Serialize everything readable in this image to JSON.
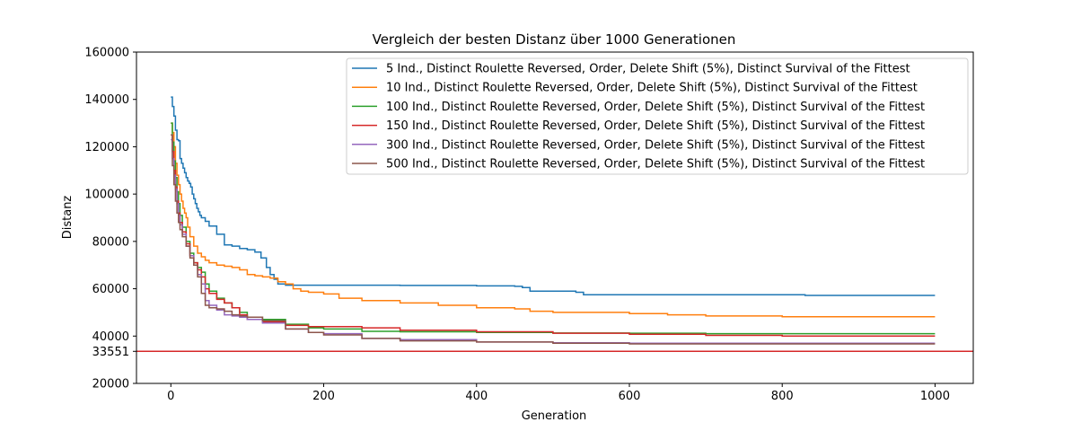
{
  "chart_data": {
    "type": "line",
    "title": "Vergleich der besten Distanz über 1000 Generationen",
    "xlabel": "Generation",
    "ylabel": "Distanz",
    "xlim": [
      -45,
      1050
    ],
    "ylim": [
      20000,
      160000
    ],
    "xticks": [
      0,
      200,
      400,
      600,
      800,
      1000
    ],
    "yticks": [
      20000,
      33551,
      40000,
      60000,
      80000,
      100000,
      120000,
      140000,
      160000
    ],
    "grid": false,
    "legend_position": "top-right",
    "reference_line": {
      "y": 33551,
      "color": "#d62728"
    },
    "series": [
      {
        "name": "5 Ind., Distinct Roulette Reversed, Order, Delete Shift (5%), Distinct Survival of the Fittest",
        "color": "#1f77b4",
        "x": [
          0,
          2,
          4,
          6,
          8,
          10,
          12,
          14,
          16,
          18,
          20,
          22,
          24,
          26,
          28,
          30,
          32,
          34,
          36,
          38,
          40,
          45,
          50,
          60,
          70,
          80,
          90,
          100,
          110,
          118,
          125,
          130,
          135,
          140,
          150,
          200,
          300,
          400,
          450,
          460,
          470,
          500,
          530,
          540,
          600,
          700,
          820,
          830,
          1000
        ],
        "y": [
          141000,
          137000,
          133000,
          127000,
          123000,
          122500,
          115000,
          113000,
          111000,
          109000,
          107000,
          105500,
          104500,
          103000,
          100000,
          98000,
          96000,
          94000,
          92500,
          91000,
          90000,
          88500,
          86500,
          83000,
          78500,
          78000,
          77000,
          76500,
          75500,
          73000,
          69000,
          66000,
          64000,
          62000,
          61500,
          61500,
          61400,
          61200,
          61000,
          60500,
          59000,
          59000,
          58500,
          57500,
          57500,
          57500,
          57500,
          57200,
          57200
        ]
      },
      {
        "name": "10 Ind., Distinct Roulette Reversed, Order, Delete Shift (5%), Distinct Survival of the Fittest",
        "color": "#ff7f0e",
        "x": [
          0,
          2,
          4,
          6,
          8,
          10,
          12,
          14,
          16,
          18,
          20,
          22,
          25,
          30,
          35,
          40,
          45,
          50,
          60,
          70,
          80,
          90,
          100,
          110,
          120,
          130,
          140,
          150,
          160,
          170,
          180,
          200,
          220,
          250,
          300,
          350,
          400,
          450,
          470,
          500,
          550,
          600,
          650,
          700,
          750,
          800,
          1000
        ],
        "y": [
          130000,
          126000,
          120000,
          113000,
          108000,
          104000,
          100000,
          97000,
          94000,
          92000,
          90000,
          86000,
          82000,
          78000,
          75000,
          73500,
          72000,
          71000,
          70000,
          69500,
          69000,
          68000,
          66000,
          65500,
          65000,
          64500,
          63000,
          62000,
          60000,
          59000,
          58500,
          57800,
          56000,
          55000,
          54000,
          53000,
          52000,
          51500,
          50500,
          50000,
          50000,
          49500,
          49000,
          48500,
          48500,
          48200,
          48200
        ]
      },
      {
        "name": "100 Ind., Distinct Roulette Reversed, Order, Delete Shift (5%), Distinct Survival of the Fittest",
        "color": "#2ca02c",
        "x": [
          0,
          2,
          4,
          6,
          8,
          10,
          12,
          15,
          20,
          25,
          30,
          35,
          40,
          45,
          50,
          60,
          70,
          80,
          90,
          100,
          120,
          150,
          180,
          200,
          250,
          300,
          400,
          500,
          600,
          700,
          800,
          1000
        ],
        "y": [
          130000,
          122000,
          114000,
          107000,
          101000,
          96000,
          91000,
          86000,
          80000,
          75000,
          71000,
          69000,
          67000,
          62000,
          59000,
          56000,
          54000,
          52000,
          50000,
          48000,
          47000,
          45000,
          43500,
          43000,
          42000,
          41800,
          41500,
          41300,
          41200,
          41000,
          41000,
          41000
        ]
      },
      {
        "name": "150 Ind., Distinct Roulette Reversed, Order, Delete Shift (5%), Distinct Survival of the Fittest",
        "color": "#d62728",
        "x": [
          0,
          2,
          4,
          6,
          8,
          10,
          12,
          15,
          20,
          25,
          30,
          35,
          40,
          45,
          50,
          60,
          70,
          80,
          90,
          100,
          120,
          150,
          180,
          200,
          250,
          300,
          400,
          500,
          600,
          700,
          800,
          1000
        ],
        "y": [
          125000,
          118000,
          110000,
          103000,
          97000,
          92000,
          88000,
          84000,
          79000,
          74000,
          71000,
          68000,
          65000,
          60000,
          58000,
          55500,
          54000,
          52000,
          49000,
          47000,
          46000,
          44500,
          44000,
          44000,
          43500,
          42500,
          41800,
          41200,
          40800,
          40300,
          40000,
          40000
        ]
      },
      {
        "name": "300 Ind., Distinct Roulette Reversed, Order, Delete Shift (5%), Distinct Survival of the Fittest",
        "color": "#9467bd",
        "x": [
          0,
          2,
          4,
          6,
          8,
          10,
          12,
          15,
          20,
          25,
          30,
          35,
          40,
          45,
          50,
          60,
          70,
          80,
          90,
          100,
          120,
          150,
          180,
          200,
          250,
          300,
          400,
          500,
          600,
          700,
          800,
          1000
        ],
        "y": [
          123000,
          115000,
          108000,
          102000,
          96000,
          91000,
          87000,
          83000,
          78000,
          74000,
          70000,
          66000,
          62000,
          55000,
          53000,
          51000,
          49000,
          48500,
          48000,
          47000,
          45500,
          43000,
          41500,
          41000,
          39000,
          38500,
          37500,
          37200,
          37000,
          37000,
          37000,
          37000
        ]
      },
      {
        "name": "500 Ind., Distinct Roulette Reversed, Order, Delete Shift (5%), Distinct Survival of the Fittest",
        "color": "#8c564b",
        "x": [
          0,
          2,
          4,
          6,
          8,
          10,
          12,
          15,
          20,
          25,
          30,
          35,
          40,
          45,
          50,
          60,
          70,
          80,
          90,
          100,
          120,
          150,
          180,
          200,
          250,
          300,
          400,
          500,
          600,
          700,
          800,
          1000
        ],
        "y": [
          125000,
          112000,
          104000,
          97000,
          92000,
          88000,
          85000,
          82000,
          78000,
          73000,
          70000,
          65000,
          58000,
          53000,
          52000,
          51500,
          50500,
          49000,
          48500,
          48000,
          46500,
          43000,
          41500,
          40500,
          39000,
          38000,
          37500,
          37000,
          36700,
          36700,
          36700,
          36700
        ]
      }
    ]
  }
}
